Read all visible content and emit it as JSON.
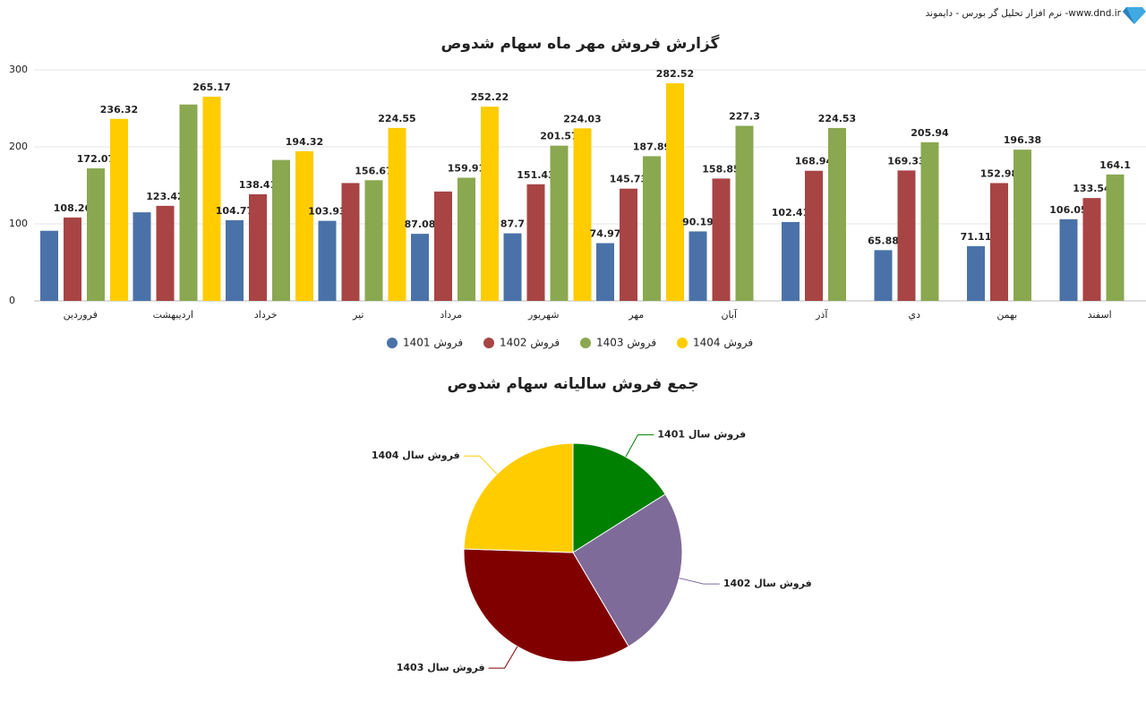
{
  "header": {
    "text": "نرم افزار تحلیل گر بورس - دایموند -www.dnd.ir"
  },
  "chart_data": [
    {
      "type": "bar",
      "title": "گزارش فروش مهر ماه سهام شدوص",
      "categories": [
        "فروردین",
        "اردیبهشت",
        "خرداد",
        "تیر",
        "مرداد",
        "شهریور",
        "مهر",
        "آبان",
        "آذر",
        "دي",
        "بهمن",
        "اسفند"
      ],
      "series": [
        {
          "name": "فروش 1401",
          "color": "#4a72a8",
          "values": [
            91,
            115,
            104.77,
            103.93,
            87.08,
            87.7,
            74.97,
            90.19,
            102.41,
            65.88,
            71.11,
            106.05
          ],
          "value_labels": [
            null,
            null,
            "104.77",
            "103.93",
            "87.08",
            "87.7",
            "74.97",
            "90.19",
            "102.41",
            "65.88",
            "71.11",
            "106.05"
          ]
        },
        {
          "name": "فروش 1402",
          "color": "#a84444",
          "values": [
            108.26,
            123.42,
            138.41,
            153,
            142,
            151.43,
            145.73,
            158.85,
            168.94,
            169.33,
            152.98,
            133.54
          ],
          "value_labels": [
            "108.26",
            "123.42",
            "138.41",
            null,
            null,
            "151.43",
            "145.73",
            "158.85",
            "168.94",
            "169.33",
            "152.98",
            "133.54"
          ]
        },
        {
          "name": "فروش 1403",
          "color": "#8aa850",
          "values": [
            172.07,
            255,
            183,
            156.67,
            159.91,
            201.57,
            187.89,
            227.3,
            224.53,
            205.94,
            196.38,
            164.1
          ],
          "value_labels": [
            "172.07",
            null,
            null,
            "156.67",
            "159.91",
            "201.57",
            "187.89",
            "227.3",
            "224.53",
            "205.94",
            "196.38",
            "164.1"
          ]
        },
        {
          "name": "فروش 1404",
          "color": "#ffcc00",
          "values": [
            236.32,
            265.17,
            194.32,
            224.55,
            252.22,
            224.03,
            282.52,
            null,
            null,
            null,
            null,
            null
          ],
          "value_labels": [
            "236.32",
            "265.17",
            "194.32",
            "224.55",
            "252.22",
            "224.03",
            "282.52",
            null,
            null,
            null,
            null,
            null
          ]
        }
      ],
      "ylim": [
        0,
        300
      ],
      "yticks": [
        0,
        100,
        200,
        300
      ],
      "grid": true,
      "legend": "bottom"
    },
    {
      "type": "pie",
      "title": "جمع فروش سالیانه سهام شدوص",
      "categories": [
        "فروش سال 1401",
        "فروش سال 1402",
        "فروش سال 1403",
        "فروش سال 1404"
      ],
      "values": [
        1100.09,
        1745.89,
        2334.36,
        1679.13
      ],
      "colors": [
        "#008000",
        "#7f6b9a",
        "#800000",
        "#ffcc00"
      ]
    }
  ]
}
